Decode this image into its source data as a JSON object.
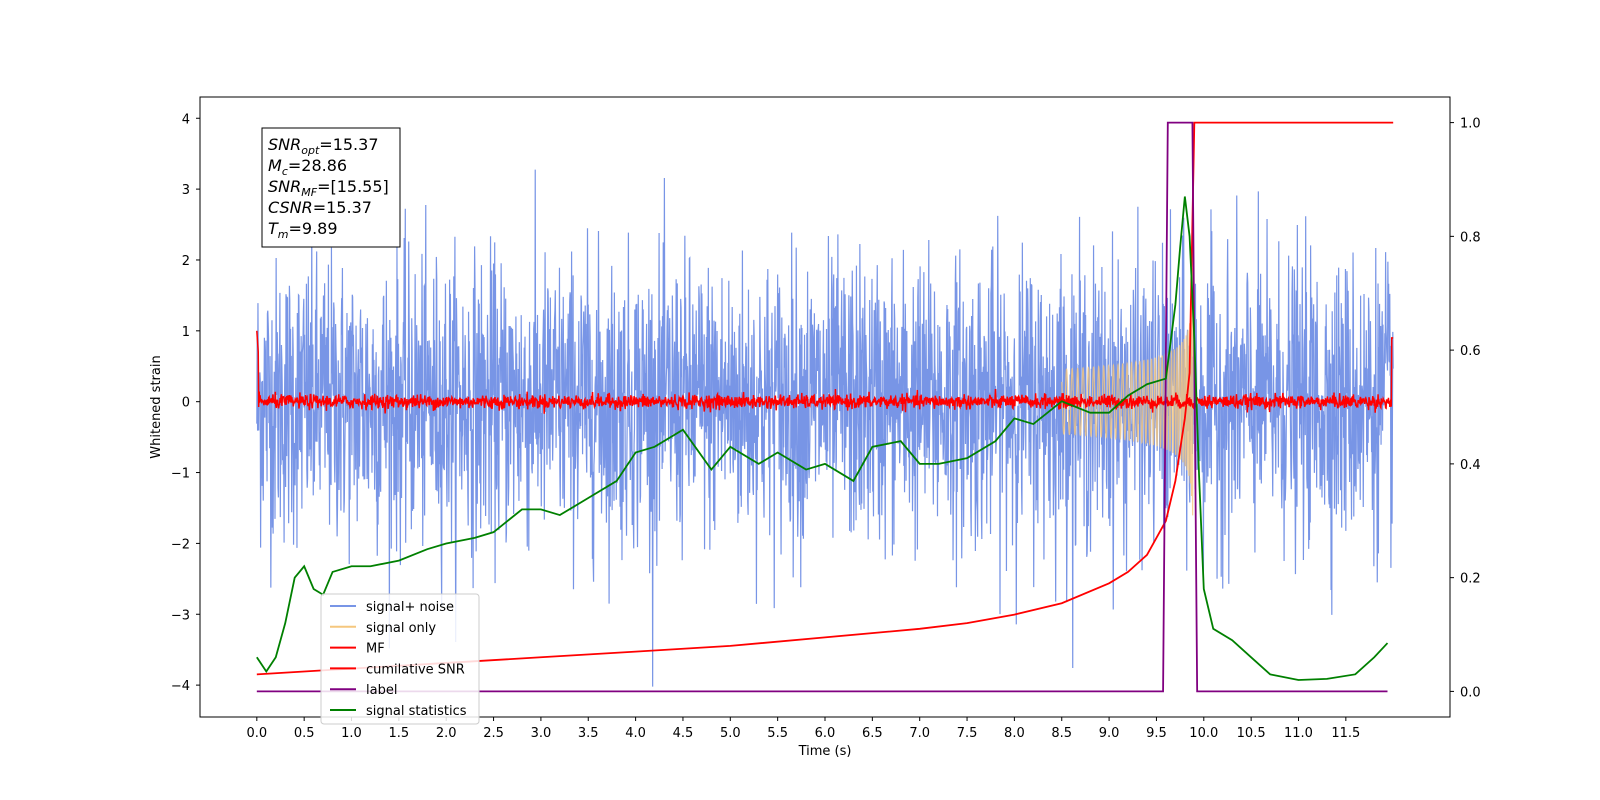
{
  "chart_data": {
    "type": "line",
    "xlabel": "Time (s)",
    "ylabel": "Whitened strain",
    "xlim": [
      -0.6,
      12.6
    ],
    "ylim": [
      -4.45,
      4.3
    ],
    "y2lim": [
      -0.045,
      1.045
    ],
    "x_ticks": [
      "0.0",
      "0.5",
      "1.0",
      "1.5",
      "2.0",
      "2.5",
      "3.0",
      "3.5",
      "4.0",
      "4.5",
      "5.0",
      "5.5",
      "6.0",
      "6.5",
      "7.0",
      "7.5",
      "8.0",
      "8.5",
      "9.0",
      "9.5",
      "10.0",
      "10.5",
      "11.0",
      "11.5"
    ],
    "y_ticks": [
      "4",
      "3",
      "2",
      "1",
      "0",
      "−1",
      "−2",
      "−3",
      "−4"
    ],
    "y2_ticks": [
      "1.0",
      "0.8",
      "0.6",
      "0.4",
      "0.2",
      "0.0"
    ],
    "annotation": {
      "lines": [
        {
          "base": "SNR",
          "sub": "opt",
          "rest": "=15.37"
        },
        {
          "base": "M",
          "sub": "c",
          "rest": "=28.86"
        },
        {
          "base": "SNR",
          "sub": "MF",
          "rest": "=[15.55]"
        },
        {
          "base": "CSNR",
          "sub": "",
          "rest": "=15.37"
        },
        {
          "base": "T",
          "sub": "m",
          "rest": "=9.89"
        }
      ]
    },
    "legend": {
      "placement": "lower-left",
      "entries": [
        {
          "label": "signal+ noise",
          "color": "#7895e6"
        },
        {
          "label": "signal only",
          "color": "#f5c77e"
        },
        {
          "label": "MF",
          "color": "#ff0000"
        },
        {
          "label": "cumilative SNR",
          "color": "#ff0000"
        },
        {
          "label": "label",
          "color": "#800080"
        },
        {
          "label": "signal statistics",
          "color": "#008000"
        }
      ]
    },
    "series": [
      {
        "name": "signal+ noise",
        "axis": "left",
        "color": "#7895e6",
        "kind": "noise",
        "x_range": [
          0,
          12
        ],
        "amplitude_sigma": 1.0
      },
      {
        "name": "signal only",
        "axis": "left",
        "color": "#f5c77e",
        "kind": "chirp",
        "x_range": [
          8.5,
          9.9
        ],
        "peak_amplitude": 1.3,
        "merger_time": 9.89
      },
      {
        "name": "MF",
        "axis": "left",
        "color": "#ff0000",
        "kind": "noise",
        "x_range": [
          0,
          12
        ],
        "amplitude_sigma": 0.05
      },
      {
        "name": "cumilative SNR",
        "axis": "right",
        "x": [
          0,
          0.5,
          1,
          2,
          3,
          4,
          5,
          6,
          7,
          7.5,
          8,
          8.5,
          9,
          9.2,
          9.4,
          9.6,
          9.7,
          9.8,
          9.85,
          9.9,
          10,
          11,
          12
        ],
        "y": [
          0.03,
          0.035,
          0.04,
          0.05,
          0.06,
          0.07,
          0.08,
          0.095,
          0.11,
          0.12,
          0.135,
          0.155,
          0.19,
          0.21,
          0.24,
          0.3,
          0.37,
          0.48,
          0.56,
          1.0,
          1.0,
          1.0,
          1.0
        ]
      },
      {
        "name": "label",
        "axis": "right",
        "x": [
          0,
          9.57,
          9.62,
          9.88,
          9.93,
          11.94
        ],
        "y": [
          0,
          0,
          1,
          1,
          0,
          0
        ]
      },
      {
        "name": "signal statistics",
        "axis": "right",
        "x": [
          0,
          0.1,
          0.2,
          0.3,
          0.4,
          0.5,
          0.6,
          0.7,
          0.8,
          1.0,
          1.2,
          1.5,
          1.8,
          2.0,
          2.3,
          2.5,
          2.8,
          3.0,
          3.2,
          3.5,
          3.8,
          4.0,
          4.2,
          4.5,
          4.8,
          5.0,
          5.3,
          5.5,
          5.8,
          6.0,
          6.3,
          6.5,
          6.8,
          7.0,
          7.2,
          7.5,
          7.8,
          8.0,
          8.2,
          8.5,
          8.8,
          9.0,
          9.2,
          9.4,
          9.6,
          9.7,
          9.75,
          9.8,
          9.85,
          9.9,
          9.95,
          10.0,
          10.1,
          10.3,
          10.5,
          10.7,
          11.0,
          11.3,
          11.6,
          11.8,
          11.94
        ],
        "y": [
          0.06,
          0.035,
          0.06,
          0.12,
          0.2,
          0.22,
          0.18,
          0.17,
          0.21,
          0.22,
          0.22,
          0.23,
          0.25,
          0.26,
          0.27,
          0.28,
          0.32,
          0.32,
          0.31,
          0.34,
          0.37,
          0.42,
          0.43,
          0.46,
          0.39,
          0.43,
          0.4,
          0.42,
          0.39,
          0.4,
          0.37,
          0.43,
          0.44,
          0.4,
          0.4,
          0.41,
          0.44,
          0.48,
          0.47,
          0.51,
          0.49,
          0.49,
          0.52,
          0.54,
          0.55,
          0.68,
          0.78,
          0.87,
          0.8,
          0.62,
          0.38,
          0.18,
          0.11,
          0.09,
          0.06,
          0.03,
          0.02,
          0.022,
          0.03,
          0.06,
          0.085
        ]
      }
    ]
  }
}
